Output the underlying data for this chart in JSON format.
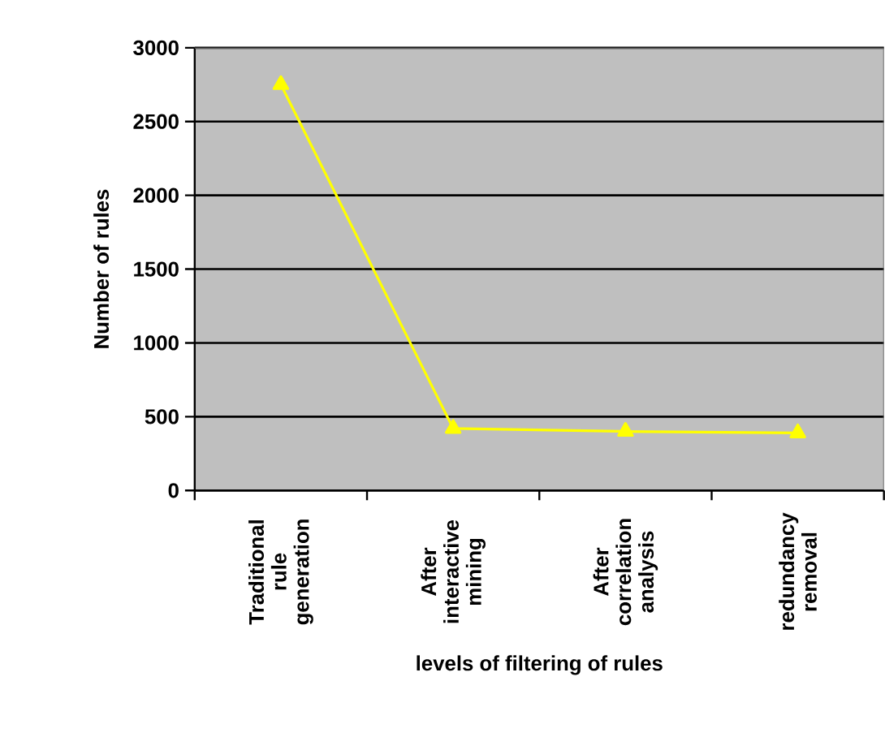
{
  "chart_data": {
    "type": "line",
    "xlabel": "levels of filtering of rules",
    "ylabel": "Number of rules",
    "categories": [
      "Traditional rule generation",
      "After interactive mining",
      "After correlation analysis",
      "redundancy removal"
    ],
    "series": [
      {
        "color": "#ffff00",
        "values": [
          2750,
          420,
          400,
          390
        ]
      }
    ],
    "ylim": [
      0,
      3000
    ],
    "yticks": [
      0,
      500,
      1000,
      1500,
      2000,
      2500,
      3000
    ],
    "grid": "y",
    "marker": "triangle",
    "line_style": "solid"
  }
}
